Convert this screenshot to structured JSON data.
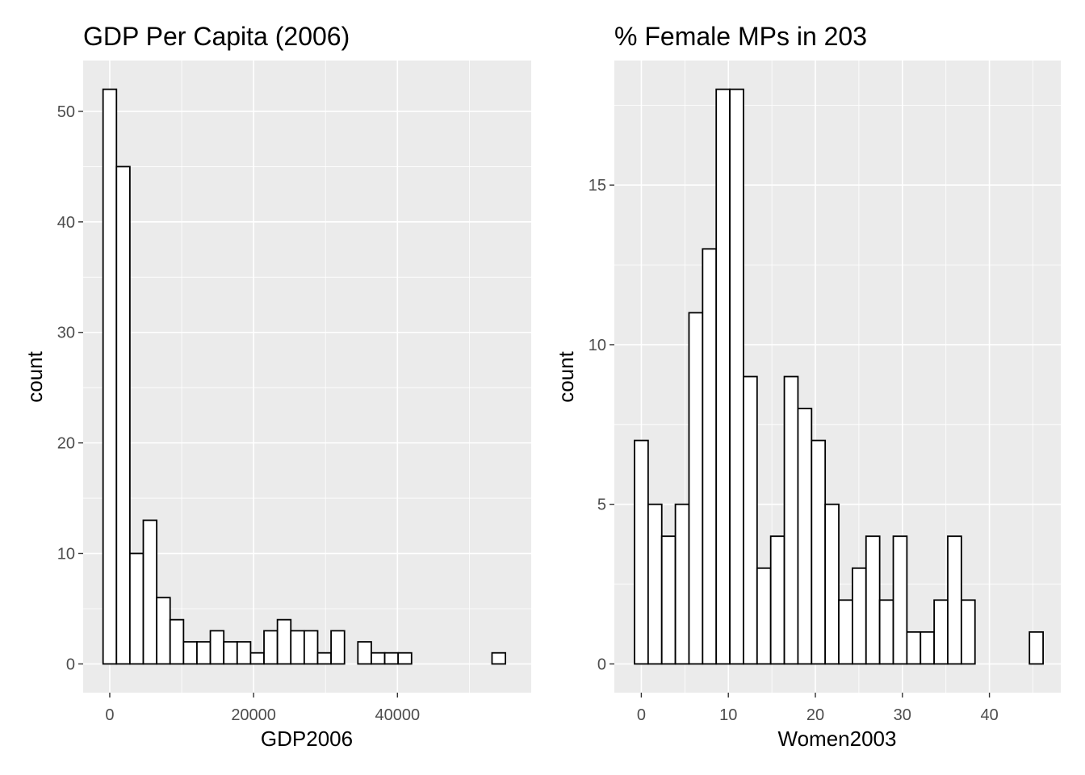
{
  "chart_data": [
    {
      "type": "bar",
      "title": "GDP Per Capita (2006)",
      "xlabel": "GDP2006",
      "ylabel": "count",
      "bin_width": 1865,
      "bin_start": -932.5,
      "values": [
        52,
        45,
        10,
        13,
        6,
        4,
        2,
        2,
        3,
        2,
        2,
        1,
        3,
        4,
        3,
        3,
        1,
        3,
        0,
        2,
        1,
        1,
        1,
        0,
        0,
        0,
        0,
        0,
        0,
        1
      ],
      "xlim": [
        -3700,
        58600
      ],
      "ylim": [
        -2.6,
        54.6
      ],
      "x_ticks": [
        0,
        20000,
        40000
      ],
      "x_tick_labels": [
        "0",
        "20000",
        "40000"
      ],
      "y_ticks": [
        0,
        10,
        20,
        30,
        40,
        50
      ],
      "y_tick_labels": [
        "0",
        "10",
        "20",
        "30",
        "40",
        "50"
      ],
      "grid": true
    },
    {
      "type": "bar",
      "title": "% Female MPs in 203",
      "xlabel": "Women2003",
      "ylabel": "count",
      "bin_width": 1.565,
      "bin_start": -0.7825,
      "values": [
        7,
        5,
        4,
        5,
        11,
        13,
        18,
        18,
        9,
        3,
        4,
        9,
        8,
        7,
        5,
        2,
        3,
        4,
        2,
        4,
        1,
        1,
        2,
        4,
        2,
        0,
        0,
        0,
        0,
        1
      ],
      "xlim": [
        -3.1,
        48.2
      ],
      "ylim": [
        -0.9,
        18.9
      ],
      "x_ticks": [
        0,
        10,
        20,
        30,
        40
      ],
      "x_tick_labels": [
        "0",
        "10",
        "20",
        "30",
        "40"
      ],
      "y_ticks": [
        0,
        5,
        10,
        15
      ],
      "y_tick_labels": [
        "0",
        "5",
        "10",
        "15"
      ],
      "grid": true
    }
  ]
}
